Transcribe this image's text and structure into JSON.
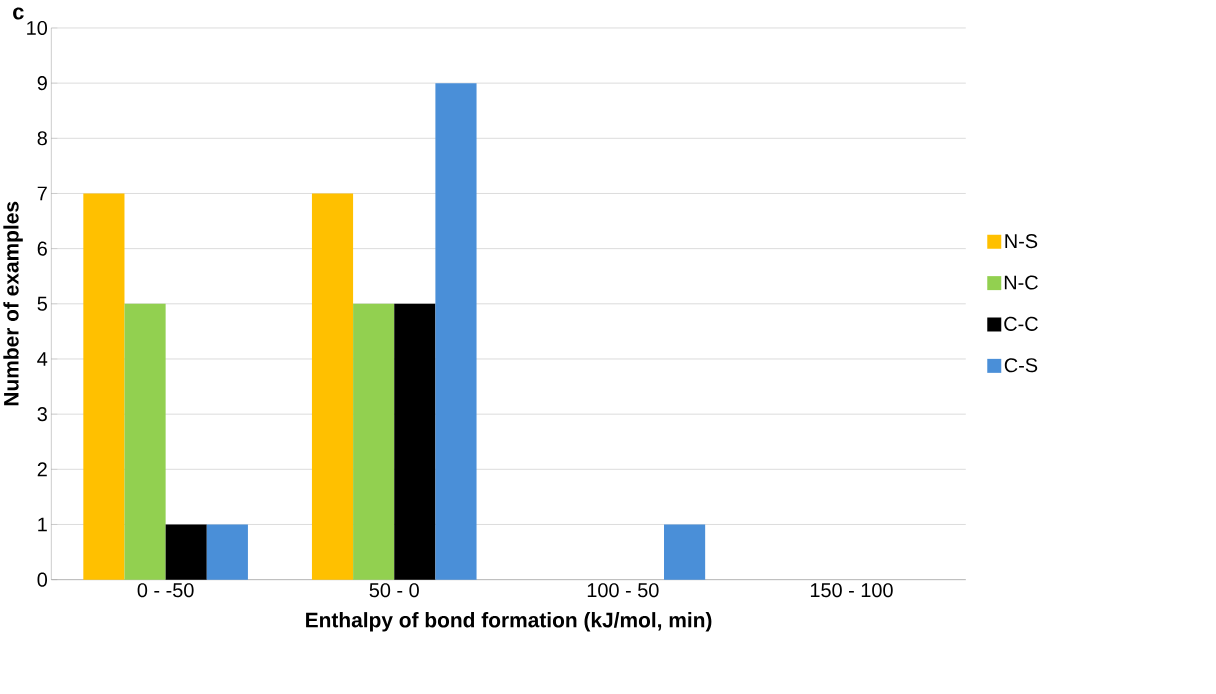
{
  "chart_data": {
    "type": "bar",
    "xlabel": "Enthalpy of bond formation (kJ/mol, min)",
    "ylabel": "Number of examples",
    "annotations": [
      "c"
    ],
    "categories": [
      "0 - -50",
      "50 - 0",
      "100 - 50",
      "150 - 100"
    ],
    "series": [
      {
        "name": "N-S",
        "color": "#ffc000",
        "values": [
          7,
          7,
          0,
          0
        ]
      },
      {
        "name": "N-C",
        "color": "#92d050",
        "values": [
          5,
          5,
          0,
          0
        ]
      },
      {
        "name": "C-C",
        "color": "#000000",
        "values": [
          1,
          5,
          0,
          0
        ]
      },
      {
        "name": "C-S",
        "color": "#4a8fd8",
        "values": [
          1,
          9,
          1,
          0
        ]
      }
    ],
    "ylim": [
      0,
      10
    ],
    "yticks": [
      0,
      1,
      2,
      3,
      4,
      5,
      6,
      7,
      8,
      9,
      10
    ],
    "grid": "y",
    "legend": "right"
  }
}
